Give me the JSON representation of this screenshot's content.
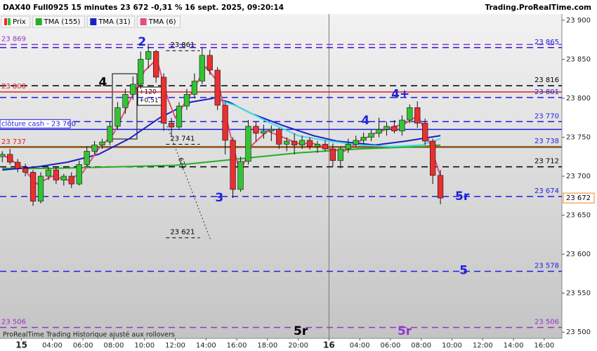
{
  "header": {
    "title": "DAX40 Full0925 15 minutes 23 672 -0,31 % 16 sept. 2025, 09:20:14",
    "site": "Trading.ProRealTime.com",
    "footer": "ProRealTime Trading  Historique ajusté aux rollovers"
  },
  "chart_data": {
    "type": "candlestick",
    "xlim": [
      0.6,
      37.15
    ],
    "ylim": [
      23492,
      23908
    ],
    "xticks": [
      {
        "value": 2,
        "label": "15"
      },
      {
        "value": 4,
        "label": "04:00"
      },
      {
        "value": 6,
        "label": "06:00"
      },
      {
        "value": 8,
        "label": "08:00"
      },
      {
        "value": 10,
        "label": "10:00"
      },
      {
        "value": 12,
        "label": "12:00"
      },
      {
        "value": 14,
        "label": "14:00"
      },
      {
        "value": 16,
        "label": "16:00"
      },
      {
        "value": 18,
        "label": "18:00"
      },
      {
        "value": 20,
        "label": "20:00"
      },
      {
        "value": 22,
        "label": "16"
      },
      {
        "value": 24,
        "label": "04:00"
      },
      {
        "value": 26,
        "label": "06:00"
      },
      {
        "value": 28,
        "label": "08:00"
      },
      {
        "value": 30,
        "label": "10:00"
      },
      {
        "value": 32,
        "label": "12:00"
      },
      {
        "value": 34,
        "label": "14:00"
      },
      {
        "value": 36,
        "label": "16:00"
      }
    ],
    "yticks": [
      {
        "value": 23500,
        "label": "23 500"
      },
      {
        "value": 23550,
        "label": "23 550"
      },
      {
        "value": 23600,
        "label": "23 600"
      },
      {
        "value": 23650,
        "label": "23 650"
      },
      {
        "value": 23700,
        "label": "23 700"
      },
      {
        "value": 23750,
        "label": "23 750"
      },
      {
        "value": 23800,
        "label": "23 800"
      },
      {
        "value": 23850,
        "label": "23 850"
      },
      {
        "value": 23900,
        "label": "23 900"
      }
    ],
    "day_breaks": [
      22
    ],
    "candles": {
      "name": "Prix",
      "up_color": "#33c433",
      "down_color": "#e83030",
      "x": [
        0.75,
        1.25,
        1.75,
        2.25,
        2.75,
        3.25,
        3.75,
        4.25,
        4.75,
        5.25,
        5.75,
        6.25,
        6.75,
        7.25,
        7.75,
        8.25,
        8.75,
        9.25,
        9.75,
        10.25,
        10.75,
        11.25,
        11.75,
        12.25,
        12.75,
        13.25,
        13.75,
        14.25,
        14.75,
        15.25,
        15.75,
        16.25,
        16.75,
        17.25,
        17.75,
        18.25,
        18.75,
        19.25,
        19.75,
        20.25,
        20.75,
        21.25,
        21.75,
        22.25,
        22.75,
        23.25,
        23.75,
        24.25,
        24.75,
        25.25,
        25.75,
        26.25,
        26.75,
        27.25,
        27.75,
        28.25,
        28.75,
        29.25
      ],
      "open": [
        23725,
        23728,
        23718,
        23710,
        23705,
        23668,
        23700,
        23708,
        23695,
        23700,
        23690,
        23715,
        23732,
        23740,
        23744,
        23764,
        23788,
        23805,
        23818,
        23850,
        23860,
        23827,
        23768,
        23763,
        23790,
        23805,
        23822,
        23855,
        23836,
        23791,
        23746,
        23683,
        23719,
        23764,
        23755,
        23758,
        23760,
        23741,
        23745,
        23740,
        23746,
        23738,
        23741,
        23735,
        23720,
        23735,
        23741,
        23746,
        23750,
        23755,
        23760,
        23764,
        23758,
        23772,
        23788,
        23768,
        23745,
        23701
      ],
      "high": [
        23732,
        23735,
        23722,
        23716,
        23708,
        23705,
        23712,
        23712,
        23703,
        23705,
        23720,
        23738,
        23745,
        23748,
        23770,
        23795,
        23812,
        23828,
        23860,
        23868,
        23862,
        23832,
        23775,
        23795,
        23812,
        23832,
        23865,
        23862,
        23840,
        23795,
        23750,
        23725,
        23772,
        23770,
        23766,
        23765,
        23762,
        23750,
        23755,
        23752,
        23750,
        23745,
        23746,
        23742,
        23738,
        23748,
        23752,
        23756,
        23760,
        23775,
        23770,
        23772,
        23778,
        23792,
        23796,
        23774,
        23748,
        23708
      ],
      "low": [
        23718,
        23715,
        23705,
        23700,
        23662,
        23665,
        23695,
        23690,
        23688,
        23685,
        23688,
        23712,
        23728,
        23735,
        23740,
        23760,
        23780,
        23798,
        23812,
        23838,
        23820,
        23758,
        23752,
        23760,
        23785,
        23800,
        23818,
        23830,
        23785,
        23728,
        23672,
        23680,
        23715,
        23745,
        23748,
        23745,
        23735,
        23732,
        23728,
        23735,
        23734,
        23730,
        23732,
        23712,
        23710,
        23730,
        23738,
        23742,
        23745,
        23750,
        23752,
        23755,
        23752,
        23768,
        23762,
        23740,
        23690,
        23664
      ],
      "close": [
        23728,
        23718,
        23710,
        23705,
        23668,
        23700,
        23708,
        23695,
        23700,
        23690,
        23715,
        23732,
        23740,
        23744,
        23764,
        23788,
        23805,
        23818,
        23850,
        23860,
        23827,
        23768,
        23763,
        23790,
        23805,
        23822,
        23855,
        23836,
        23791,
        23746,
        23683,
        23719,
        23764,
        23755,
        23758,
        23760,
        23741,
        23745,
        23740,
        23746,
        23738,
        23741,
        23735,
        23720,
        23735,
        23741,
        23746,
        23750,
        23755,
        23760,
        23764,
        23758,
        23772,
        23788,
        23768,
        23745,
        23701,
        23672
      ]
    },
    "series": [
      {
        "name": "TMA (155)",
        "color": "#22b022",
        "x": [
          0.75,
          4,
          8,
          12,
          16,
          20,
          24,
          28,
          29.25
        ],
        "y": [
          23710,
          23710,
          23712,
          23714,
          23722,
          23730,
          23735,
          23738,
          23740
        ]
      },
      {
        "name": "TMA (31)",
        "color": "#1e1ec8",
        "x": [
          0.75,
          3,
          5,
          7,
          9,
          11,
          13,
          14.5,
          15.5,
          17,
          19,
          21,
          22.5,
          25,
          27,
          29.25
        ],
        "y": [
          23708,
          23712,
          23718,
          23728,
          23748,
          23775,
          23795,
          23800,
          23795,
          23780,
          23765,
          23752,
          23745,
          23740,
          23745,
          23752
        ]
      },
      {
        "color": "#3ee0e8",
        "x": [
          14.5,
          16,
          18,
          20,
          22,
          24,
          26,
          28,
          29.25
        ],
        "y": [
          23800,
          23790,
          23770,
          23752,
          23745,
          23740,
          23738,
          23740,
          23748
        ]
      },
      {
        "name": "TMA (6)",
        "color": "#e0507a",
        "x": [
          0.75,
          2,
          3,
          4,
          5,
          6,
          7,
          8,
          9,
          10,
          10.8,
          11.5,
          12,
          13,
          14,
          14.8,
          15.5,
          16.2,
          17,
          18,
          19,
          20,
          21,
          22,
          23,
          24,
          25,
          26,
          27,
          27.8,
          28.5,
          29.25
        ],
        "y": [
          23728,
          23712,
          23690,
          23700,
          23695,
          23705,
          23735,
          23755,
          23795,
          23835,
          23850,
          23800,
          23775,
          23805,
          23840,
          23820,
          23760,
          23705,
          23740,
          23758,
          23750,
          23742,
          23742,
          23735,
          23732,
          23745,
          23755,
          23762,
          23768,
          23778,
          23745,
          23700
        ]
      }
    ],
    "levels": [
      {
        "value": 23869,
        "color": "#9932cc",
        "dashed": true,
        "label_left": "23 869"
      },
      {
        "value": 23865,
        "color": "#1f1fdd",
        "dashed": true,
        "label_right": "23 865"
      },
      {
        "value": 23816,
        "color": "#000000",
        "dashed": true,
        "label_right": "23 816"
      },
      {
        "value": 23808,
        "color": "#dd2222",
        "dashed": false,
        "label_left": "23 808"
      },
      {
        "value": 23801,
        "color": "#1f1fdd",
        "dashed": true,
        "label_right": "23 801"
      },
      {
        "value": 23770,
        "color": "#1f1fdd",
        "dashed": true,
        "label_right": "23 770"
      },
      {
        "value": 23760,
        "color": "#1f1fdd",
        "dashed": false,
        "label_left": "clôture cash -  23 760"
      },
      {
        "value": 23738,
        "color": "#22a022",
        "dashed": false,
        "label_right": "23 738"
      },
      {
        "value": 23737,
        "color": "#dd2222",
        "dashed": false,
        "label_left": "23 737"
      },
      {
        "value": 23712,
        "color": "#000000",
        "dashed": true,
        "label_right": "23 712"
      },
      {
        "value": 23674,
        "color": "#1f1fdd",
        "dashed": true,
        "label_right": "23 674"
      },
      {
        "value": 23578,
        "color": "#1f1fdd",
        "dashed": true,
        "label_right": "23 578"
      },
      {
        "value": 23506,
        "color": "#9932cc",
        "dashed": true,
        "label_left": "23 506",
        "label_right": "23 506"
      }
    ],
    "segments": [
      {
        "value": 23861,
        "x": [
          11.4,
          13.6
        ],
        "label": "23 861"
      },
      {
        "value": 23741,
        "x": [
          11.4,
          13.6
        ],
        "label": "23 741"
      },
      {
        "value": 23621,
        "x": [
          11.4,
          13.6
        ],
        "label": "23 621"
      }
    ],
    "last": {
      "value": 23672,
      "label": "23 672"
    },
    "annotations": [
      {
        "text": "2",
        "x": 9.84,
        "y": 23872,
        "color": "#1f1fdd"
      },
      {
        "text": "4",
        "x": 7.29,
        "y": 23820,
        "color": "#000000"
      },
      {
        "text": "3",
        "x": 14.87,
        "y": 23672,
        "color": "#1f1fdd"
      },
      {
        "text": "4+",
        "x": 26.65,
        "y": 23805,
        "color": "#1f1fdd"
      },
      {
        "text": "4",
        "x": 24.37,
        "y": 23771,
        "color": "#1f1fdd"
      },
      {
        "text": "5r",
        "x": 30.67,
        "y": 23674,
        "color": "#1f1fdd"
      },
      {
        "text": "5",
        "x": 30.76,
        "y": 23579,
        "color": "#1f1fdd"
      },
      {
        "text": "5r",
        "x": 20.16,
        "y": 23501,
        "color": "#000000"
      },
      {
        "text": "5r",
        "x": 26.92,
        "y": 23501,
        "color": "#9932cc"
      }
    ],
    "box_text": [
      "+120",
      "+0,51 %"
    ],
    "diagonal_text": "621"
  }
}
